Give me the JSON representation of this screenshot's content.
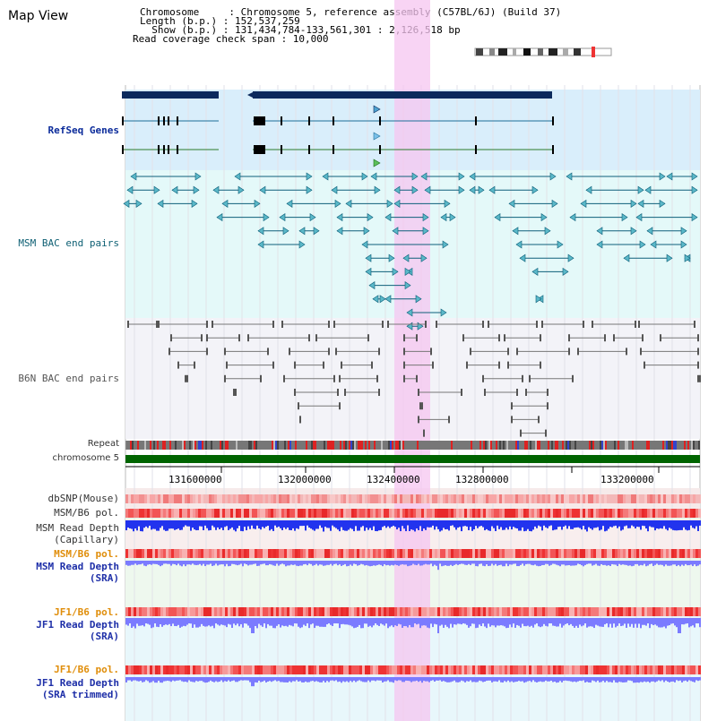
{
  "header": {
    "title": "Map View",
    "info_lines": [
      "Chromosome     : Chromosome 5, reference assembly (C57BL/6J) (Build 37)",
      "Length (b.p.) : 152,537,259",
      "  Show (b.p.) : 131,434,784-133,561,301 : 2,126,518 bp",
      "Read coverage check span : 10,000"
    ]
  },
  "tracks": {
    "refseq": "RefSeq Genes",
    "msm_bac": "MSM BAC end pairs",
    "b6n_bac": "B6N BAC end pairs",
    "repeat": "Repeat",
    "chromosome": "chromosome 5",
    "dbsnp": "dbSNP(Mouse)",
    "msm_b6_pol_1": "MSM/B6 pol.",
    "msm_depth_cap_1": "MSM Read Depth",
    "msm_depth_cap_2": "(Capillary)",
    "msm_b6_pol_2": "MSM/B6 pol.",
    "msm_depth_sra_1": "MSM Read Depth",
    "msm_depth_sra_2": "(SRA)",
    "jf1_b6_pol_1": "JF1/B6 pol.",
    "jf1_depth_sra_1": "JF1 Read Depth",
    "jf1_depth_sra_2": "(SRA)",
    "jf1_b6_pol_2": "JF1/B6 pol.",
    "jf1_depth_trim_1": "JF1 Read Depth",
    "jf1_depth_trim_2": "(SRA trimmed)"
  },
  "axis": {
    "ticks": [
      "131600000",
      "132000000",
      "132400000",
      "132800000",
      "133200000"
    ]
  },
  "colors": {
    "highlight": "#f5c6f0",
    "refseq_bg": "#d9eefb",
    "msm_bg": "#e4f9f9",
    "b6n_bg": "#f3f3f8",
    "chrom_bar": "#006400",
    "gene_dark": "#0c2a5c",
    "depth_blue": "#2233ee",
    "depth_light": "#7b7bff",
    "pol_red": "#ee3333"
  }
}
